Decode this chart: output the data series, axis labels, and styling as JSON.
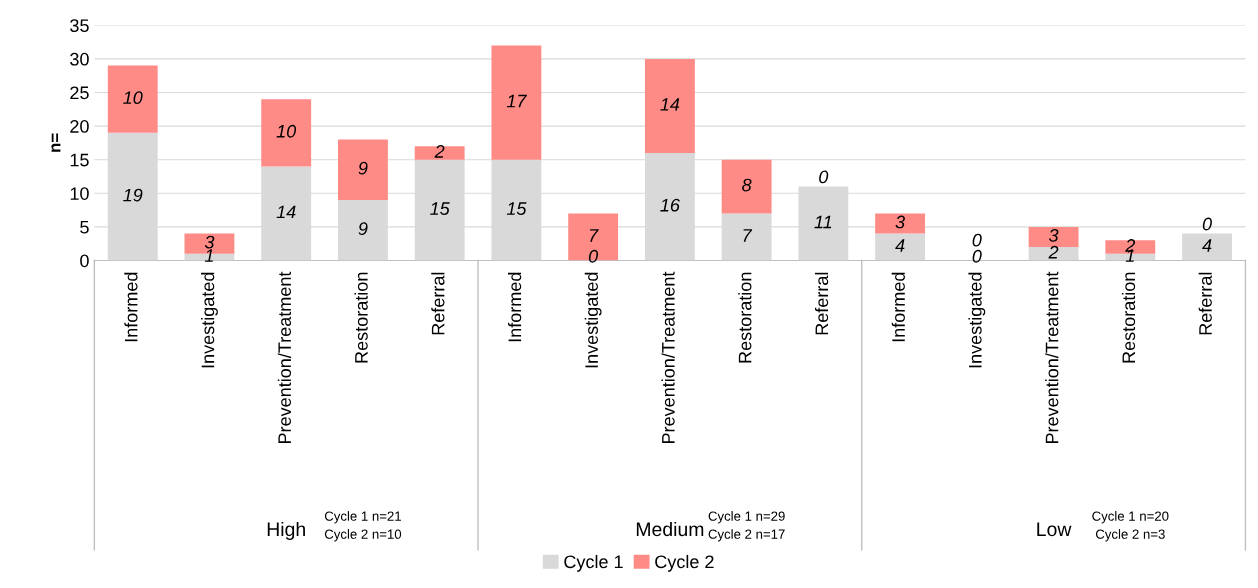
{
  "chart_data": {
    "type": "bar",
    "stacked": true,
    "ylabel": "n=",
    "categories": [
      "Informed",
      "Investigated",
      "Prevention/Treatment",
      "Restoration",
      "Referral",
      "Informed",
      "Investigated",
      "Prevention/Treatment",
      "Restoration",
      "Referral",
      "Informed",
      "Investigated",
      "Prevention/Treatment",
      "Restoration",
      "Referral"
    ],
    "series": [
      {
        "name": "Cycle 1",
        "color": "#d9d9d9",
        "values": [
          19,
          1,
          14,
          9,
          15,
          15,
          0,
          16,
          7,
          11,
          4,
          0,
          2,
          1,
          4
        ]
      },
      {
        "name": "Cycle 2",
        "color": "#ff8b87",
        "values": [
          10,
          3,
          10,
          9,
          2,
          17,
          7,
          14,
          8,
          0,
          3,
          0,
          3,
          2,
          0
        ]
      }
    ],
    "ylim": [
      0,
      35
    ],
    "yticks": [
      0,
      5,
      10,
      15,
      20,
      25,
      30,
      35
    ],
    "grid": "y",
    "legend": "bottom",
    "data_labels": true,
    "annotations": [
      "High",
      "Cycle 1 n=21\nCycle 2 n=10",
      "Medium",
      "Cycle 1 n=29\nCycle 2 n=17",
      "Low",
      "Cycle 1 n=20\nCycle 2 n=3"
    ]
  }
}
